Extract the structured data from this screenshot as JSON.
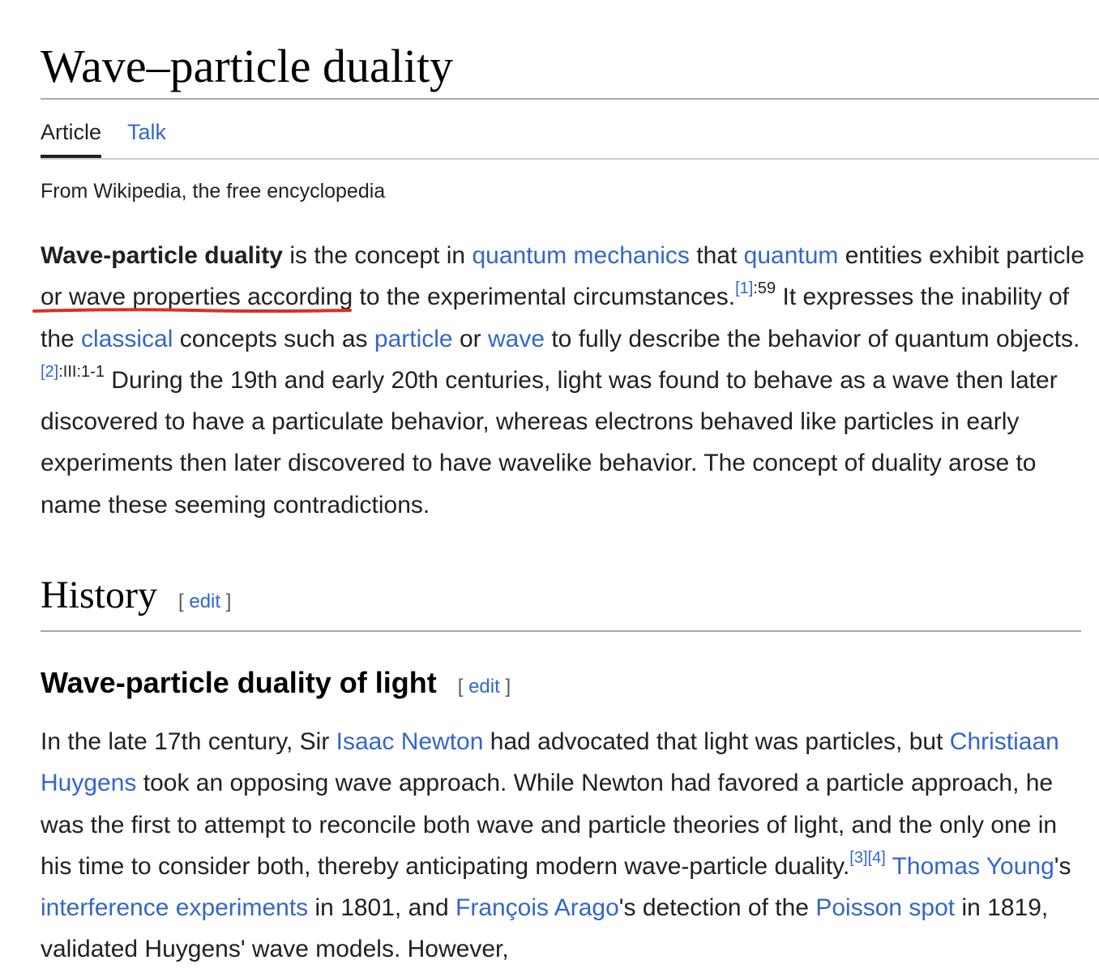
{
  "title": "Wave–particle duality",
  "tabs": [
    {
      "label": "Article",
      "active": true
    },
    {
      "label": "Talk",
      "active": false
    }
  ],
  "tagline": "From Wikipedia, the free encyclopedia",
  "intro": {
    "bold_term": "Wave-particle duality",
    "t1": " is the concept in ",
    "link_quantum_mechanics": "quantum mechanics",
    "t2": " that ",
    "link_quantum": "quantum",
    "t3": " entities exhibit ",
    "link_particle_or_wave": "particle or wave properties",
    "t4": " according to the experimental circumstances.",
    "ref1": "[1]",
    "ref1_page": ":59",
    "t5": " It expresses the inability of the ",
    "link_classical": "classical",
    "t6": " concepts such as ",
    "link_particle": "particle",
    "t7": " or ",
    "link_wave": "wave",
    "t8": " to fully describe the behavior of quantum objects.",
    "ref2": "[2]",
    "ref2_page": ":III:1-1",
    "t9": " During the 19th and early 20th centuries, light was found to behave as a wave then later discovered to have a particulate behavior, whereas electrons behaved like particles in early experiments then later discovered to have wavelike behavior. The concept of duality arose to name these seeming contradictions."
  },
  "history": {
    "heading": "History",
    "edit_open": "[ ",
    "edit_label": "edit",
    "edit_close": " ]"
  },
  "light_section": {
    "heading": "Wave-particle duality of light",
    "edit_open": "[ ",
    "edit_label": "edit",
    "edit_close": " ]"
  },
  "light_para": {
    "t1": "In the late 17th century, Sir ",
    "link_newton": "Isaac Newton",
    "t2": " had advocated that light was particles, but ",
    "link_huygens": "Christiaan Huygens",
    "t3": " took an opposing wave approach. While Newton had favored a particle approach, he was the first to attempt to reconcile both wave and particle theories of light, and the only one in his time to consider both, thereby anticipating modern wave-particle duality.",
    "ref3": "[3]",
    "ref4": "[4]",
    "t4": " ",
    "link_young": "Thomas Young",
    "t5": "'s ",
    "link_interference": "interference experiments",
    "t6": " in 1801, and ",
    "link_arago": "François Arago",
    "t7": "'s detection of the ",
    "link_poisson": "Poisson spot",
    "t8": " in 1819, validated Huygens' wave models. However,"
  },
  "colors": {
    "link": "#3366cc",
    "text": "#202122",
    "annotation_underline": "#d93025"
  }
}
